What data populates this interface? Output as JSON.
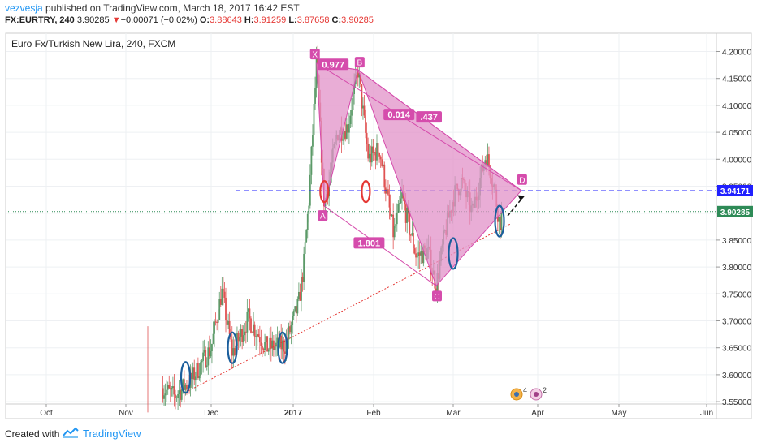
{
  "header": {
    "author": "vezvesja",
    "published": " published on TradingView.com, March 18, 2017 16:42 EST",
    "symbol": "FX:EURTRY, 240",
    "last": "3.90285",
    "change_arrow": "▼",
    "change": "−0.00071 (−0.02%)",
    "o_label": "O:",
    "o": "3.88643",
    "h_label": "H:",
    "h": "3.91259",
    "l_label": "L:",
    "l": "3.87658",
    "c_label": "C:",
    "c": "3.90285"
  },
  "chart_title": "Euro Fx/Turkish New Lira, 240, FXCM",
  "footer": {
    "created": "Created with",
    "brand": "TradingView"
  },
  "colors": {
    "up": "#5b9a68",
    "down": "#e05252",
    "pattern_fill": "#e291c8",
    "pattern_line": "#d54cac",
    "ellipse_blue": "#1b5e9c",
    "ellipse_red": "#e53935",
    "hline_blue": "#2020ff",
    "last_price": "#2e8b57",
    "trend_red": "#e53935"
  },
  "chart_data": {
    "type": "candlestick",
    "timeframe": "240",
    "x_ticks": [
      "Oct",
      "Nov",
      "Dec",
      "2017",
      "Feb",
      "Mar",
      "Apr",
      "May",
      "Jun"
    ],
    "y_ticks": [
      "4.20000",
      "4.15000",
      "4.10000",
      "4.05000",
      "4.00000",
      "3.95000",
      "3.90000",
      "3.85000",
      "3.80000",
      "3.75000",
      "3.70000",
      "3.65000",
      "3.60000",
      "3.55000"
    ],
    "ylim": [
      3.535,
      4.225
    ],
    "price_labels": {
      "target": "3.94171",
      "last": "3.90285"
    },
    "harmonic_pattern": {
      "points": [
        {
          "label": "X",
          "date": "2017-01-10",
          "price": 4.178
        },
        {
          "label": "A",
          "date": "2017-01-13",
          "price": 3.913
        },
        {
          "label": "B",
          "date": "2017-01-26",
          "price": 4.166
        },
        {
          "label": "C",
          "date": "2017-02-23",
          "price": 3.765
        },
        {
          "label": "D",
          "date": "2017-03-26",
          "price": 3.942
        }
      ],
      "ratios": [
        "0.977",
        "0.014",
        ".437",
        "1.801"
      ]
    },
    "horizontal_line": 3.94171,
    "last_price": 3.90285,
    "trendline": [
      {
        "date": "2016-11-23",
        "price": 3.57
      },
      {
        "date": "2017-03-22",
        "price": 3.88
      }
    ],
    "projection": [
      {
        "date": "2017-03-21",
        "price": 3.895
      },
      {
        "date": "2017-03-27",
        "price": 3.932
      }
    ],
    "ellipses": [
      {
        "color": "blue",
        "date": "2016-11-22",
        "price": 3.595
      },
      {
        "color": "blue",
        "date": "2016-12-09",
        "price": 3.65
      },
      {
        "color": "blue",
        "date": "2016-12-28",
        "price": 3.65
      },
      {
        "color": "red",
        "date": "2017-01-13",
        "price": 3.94
      },
      {
        "color": "red",
        "date": "2017-01-29",
        "price": 3.94
      },
      {
        "color": "blue",
        "date": "2017-03-01",
        "price": 3.825
      },
      {
        "color": "blue",
        "date": "2017-03-18",
        "price": 3.885
      }
    ],
    "event_badges": [
      {
        "text": "4"
      },
      {
        "text": "2"
      }
    ]
  }
}
